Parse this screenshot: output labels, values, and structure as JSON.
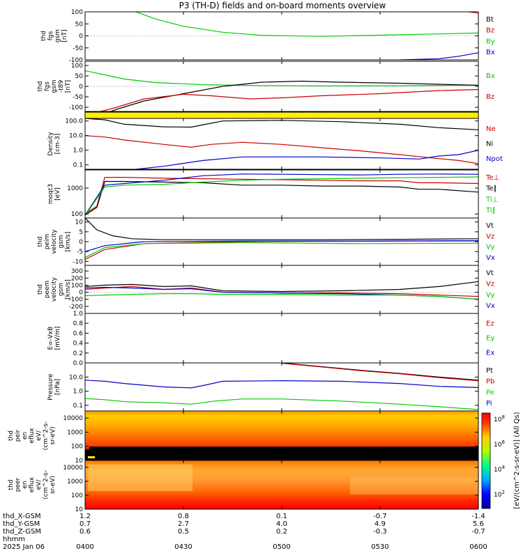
{
  "title": "P3 (TH-D) fields and on-board moments overview",
  "time_axis": {
    "tick_labels": [
      "0400",
      "0430",
      "0500",
      "0530",
      "0600"
    ],
    "ephemeris": [
      {
        "label": "thd_X-GSM",
        "values": [
          "1.2",
          "0.8",
          "0.1",
          "-0.7",
          "-1.4"
        ]
      },
      {
        "label": "thd_Y-GSM",
        "values": [
          "0.7",
          "2.7",
          "4.0",
          "4.9",
          "5.6"
        ]
      },
      {
        "label": "thd_Z-GSM",
        "values": [
          "0.6",
          "0.5",
          "0.2",
          "-0.3",
          "-0.7"
        ]
      }
    ],
    "footer_label": "hhmm",
    "date": "2025 Jan 06"
  },
  "colors": {
    "black": "#000000",
    "red": "#cc0000",
    "green": "#00cc00",
    "blue": "#0000cc",
    "yellow": "#ffee00"
  },
  "chart_data": [
    {
      "type": "line",
      "ylabel": [
        "thd",
        "fgs",
        "gsm",
        "[nT]"
      ],
      "ylim": [
        -100,
        100
      ],
      "yticks": [
        "100",
        "50",
        "0",
        "-50",
        "-100"
      ],
      "legend": [
        "Bt",
        "Bz",
        "By",
        "Bx"
      ],
      "legend_colors": [
        "#000000",
        "#cc0000",
        "#00cc00",
        "#0000cc"
      ],
      "series": [
        {
          "name": "By",
          "color": "#00cc00",
          "x": [
            0,
            0.13,
            0.18,
            0.25,
            0.35,
            0.45,
            0.6,
            0.75,
            0.9,
            1
          ],
          "y": [
            160,
            100,
            70,
            40,
            15,
            2,
            -2,
            3,
            8,
            12
          ]
        },
        {
          "name": "Bx",
          "color": "#0000cc",
          "x": [
            0.8,
            0.9,
            0.95,
            1
          ],
          "y": [
            -100,
            -95,
            -85,
            -70
          ]
        },
        {
          "name": "Bz",
          "color": "#cc0000",
          "x": [
            0.975,
            1
          ],
          "y": [
            100,
            95
          ]
        }
      ]
    },
    {
      "type": "line",
      "ylabel": [
        "thd",
        "fgs",
        "gsm",
        "-t89",
        "[nT]"
      ],
      "ylim": [
        -120,
        120
      ],
      "yticks": [
        "100",
        "50",
        "0",
        "-50",
        "-100"
      ],
      "legend": [
        "Bx",
        "Bz"
      ],
      "legend_colors": [
        "#00cc00",
        "#cc0000"
      ],
      "series": [
        {
          "name": "Bx",
          "color": "#00cc00",
          "x": [
            0,
            0.05,
            0.1,
            0.18,
            0.3,
            0.45,
            0.6,
            0.8,
            1
          ],
          "y": [
            75,
            55,
            35,
            18,
            8,
            4,
            2,
            3,
            6
          ]
        },
        {
          "name": "black",
          "color": "#000000",
          "x": [
            0.05,
            0.08,
            0.15,
            0.25,
            0.35,
            0.45,
            0.55,
            0.65,
            0.8,
            0.9,
            1
          ],
          "y": [
            -130,
            -110,
            -70,
            -35,
            0,
            20,
            25,
            20,
            15,
            10,
            5
          ]
        },
        {
          "name": "Bz",
          "color": "#cc0000",
          "x": [
            0.03,
            0.08,
            0.15,
            0.25,
            0.32,
            0.42,
            0.5,
            0.6,
            0.75,
            0.9,
            1
          ],
          "y": [
            -125,
            -100,
            -60,
            -38,
            -45,
            -60,
            -55,
            -45,
            -35,
            -20,
            -15
          ]
        }
      ]
    },
    {
      "type": "bar",
      "name": "flag",
      "color": "#ffee00"
    },
    {
      "type": "line",
      "log": true,
      "ylabel": [
        "Density",
        "[cm-3]"
      ],
      "ylim": [
        0.05,
        150
      ],
      "yticks": [
        "100.0",
        "10.0",
        "1.0",
        "0.1"
      ],
      "legend": [
        "Ne",
        "Ni",
        "Npot"
      ],
      "legend_colors": [
        "#cc0000",
        "#000000",
        "#0000cc"
      ],
      "series": [
        {
          "name": "Ni",
          "color": "#000000",
          "x": [
            0,
            0.05,
            0.1,
            0.2,
            0.27,
            0.3,
            0.35,
            0.5,
            0.65,
            0.8,
            0.9,
            1
          ],
          "y": [
            150,
            120,
            60,
            40,
            38,
            55,
            100,
            110,
            90,
            60,
            35,
            25
          ]
        },
        {
          "name": "Ne",
          "color": "#cc0000",
          "x": [
            0,
            0.05,
            0.1,
            0.2,
            0.27,
            0.32,
            0.4,
            0.5,
            0.6,
            0.7,
            0.8,
            0.88,
            0.95,
            1
          ],
          "y": [
            10,
            8,
            5,
            2.5,
            1.6,
            2.5,
            3.5,
            2.5,
            1.5,
            0.9,
            0.5,
            0.3,
            0.2,
            0.12
          ]
        },
        {
          "name": "Npot",
          "color": "#0000cc",
          "x": [
            0.13,
            0.2,
            0.3,
            0.4,
            0.6,
            0.75,
            0.85,
            0.9,
            0.95,
            1
          ],
          "y": [
            0.05,
            0.08,
            0.2,
            0.35,
            0.35,
            0.3,
            0.25,
            0.4,
            0.5,
            1.0
          ]
        }
      ]
    },
    {
      "type": "line",
      "log": true,
      "ylabel": [
        "moqt3",
        "[eV]"
      ],
      "ylim": [
        70,
        5000
      ],
      "yticks": [
        "1000",
        "100"
      ],
      "legend": [
        "Te⊥",
        "Te∥",
        "Ti⊥",
        "Ti∥"
      ],
      "legend_colors": [
        "#cc0000",
        "#000000",
        "#00cc00",
        "#00cc00"
      ],
      "series": [
        {
          "name": "Te⊥",
          "color": "#cc0000",
          "x": [
            0,
            0.03,
            0.05,
            0.1,
            0.2,
            0.3,
            0.4,
            0.5,
            0.6,
            0.7,
            0.8,
            0.85,
            0.9,
            1
          ],
          "y": [
            100,
            200,
            2600,
            2600,
            2400,
            2300,
            2200,
            2100,
            2000,
            1900,
            1900,
            1600,
            1600,
            1500
          ]
        },
        {
          "name": "Te∥",
          "color": "#000000",
          "x": [
            0,
            0.03,
            0.05,
            0.1,
            0.2,
            0.3,
            0.4,
            0.5,
            0.6,
            0.7,
            0.8,
            0.85,
            0.9,
            1
          ],
          "y": [
            90,
            180,
            1800,
            1800,
            1700,
            1600,
            1300,
            1300,
            1200,
            1200,
            1100,
            900,
            900,
            700
          ]
        },
        {
          "name": "Ti⊥",
          "color": "#0000cc",
          "x": [
            0,
            0.05,
            0.1,
            0.2,
            0.3,
            0.4,
            0.5,
            0.6,
            0.7,
            0.8,
            0.9,
            1
          ],
          "y": [
            90,
            1300,
            1500,
            2000,
            3000,
            3500,
            3400,
            3300,
            3200,
            3400,
            3500,
            3400
          ]
        },
        {
          "name": "Ti∥",
          "color": "#00cc00",
          "x": [
            0,
            0.05,
            0.1,
            0.2,
            0.3,
            0.4,
            0.5,
            0.6,
            0.7,
            0.8,
            0.9,
            1
          ],
          "y": [
            85,
            1100,
            1300,
            1400,
            1700,
            2000,
            2200,
            2300,
            2400,
            2500,
            2600,
            2700
          ]
        }
      ]
    },
    {
      "type": "line",
      "ylabel": [
        "thd",
        "peim",
        "velocity",
        "gsm",
        "[km/s]"
      ],
      "ylim": [
        -12,
        12
      ],
      "yticks": [
        "10",
        "5",
        "0",
        "-5",
        "-10"
      ],
      "legend": [
        "Vt",
        "Vz",
        "Vy",
        "Vx"
      ],
      "legend_colors": [
        "#000000",
        "#cc0000",
        "#00cc00",
        "#0000cc"
      ],
      "series": [
        {
          "name": "Vt",
          "color": "#000000",
          "x": [
            0,
            0.03,
            0.07,
            0.12,
            0.2,
            0.4,
            0.6,
            0.8,
            1
          ],
          "y": [
            12,
            6,
            3,
            1.5,
            1,
            1,
            1,
            1.2,
            1.5
          ]
        },
        {
          "name": "Vz",
          "color": "#cc0000",
          "x": [
            0,
            0.05,
            0.15,
            0.4,
            0.7,
            1
          ],
          "y": [
            -9,
            -4,
            -1,
            0,
            0.3,
            0.5
          ]
        },
        {
          "name": "Vy",
          "color": "#00cc00",
          "x": [
            0,
            0.05,
            0.15,
            0.4,
            0.7,
            1
          ],
          "y": [
            -8,
            -3,
            -1,
            -0.5,
            -1,
            -0.8
          ]
        },
        {
          "name": "Vx",
          "color": "#0000cc",
          "x": [
            0,
            0.05,
            0.15,
            0.4,
            0.7,
            1
          ],
          "y": [
            -5,
            -2,
            0,
            0.3,
            0.3,
            0.5
          ]
        }
      ]
    },
    {
      "type": "line",
      "ylabel": [
        "thd",
        "peem",
        "velocity",
        "gsm",
        "[km/s]"
      ],
      "ylim": [
        -300,
        380
      ],
      "yticks": [
        "300",
        "200",
        "100",
        "0",
        "-100",
        "-200"
      ],
      "legend": [
        "Vt",
        "Vz",
        "Vy",
        "Vx"
      ],
      "legend_colors": [
        "#000000",
        "#cc0000",
        "#00cc00",
        "#0000cc"
      ],
      "series": [
        {
          "name": "Vt",
          "color": "#000000",
          "x": [
            0,
            0.05,
            0.12,
            0.2,
            0.27,
            0.35,
            0.5,
            0.65,
            0.8,
            0.9,
            1
          ],
          "y": [
            80,
            100,
            110,
            80,
            90,
            20,
            10,
            20,
            40,
            80,
            150
          ]
        },
        {
          "name": "Vz",
          "color": "#cc0000",
          "x": [
            0,
            0.05,
            0.12,
            0.2,
            0.27,
            0.35,
            0.5,
            0.65,
            0.8,
            0.9,
            1
          ],
          "y": [
            40,
            60,
            80,
            40,
            60,
            0,
            -10,
            -10,
            -20,
            -40,
            -60
          ]
        },
        {
          "name": "Vx",
          "color": "#0000cc",
          "x": [
            0,
            0.05,
            0.12,
            0.2,
            0.27,
            0.35,
            0.5,
            0.65,
            0.8,
            0.9,
            1
          ],
          "y": [
            60,
            70,
            60,
            40,
            50,
            0,
            -10,
            -20,
            -40,
            -60,
            -100
          ]
        },
        {
          "name": "Vy",
          "color": "#00cc00",
          "x": [
            0,
            0.05,
            0.12,
            0.2,
            0.27,
            0.35,
            0.5,
            0.65,
            0.8,
            0.9,
            1
          ],
          "y": [
            -50,
            -40,
            -30,
            -20,
            -20,
            -30,
            -30,
            -40,
            -40,
            -60,
            -100
          ]
        }
      ]
    },
    {
      "type": "line",
      "ylabel": [
        "E=-VxB",
        "[mV/m]"
      ],
      "ylim": [
        0,
        1
      ],
      "yticks": [
        "1.0",
        "0.8",
        "0.6",
        "0.4",
        "0.2",
        "0.0"
      ],
      "legend": [
        "Ez",
        "Ey",
        "Ex"
      ],
      "legend_colors": [
        "#cc0000",
        "#00cc00",
        "#0000cc"
      ],
      "series": []
    },
    {
      "type": "line",
      "log": true,
      "ylabel": [
        "Pressure",
        "[nPa]"
      ],
      "ylim": [
        0.04,
        100
      ],
      "yticks": [
        "10.0",
        "1.0",
        "0.1"
      ],
      "legend": [
        "Pt",
        "Pb",
        "Pe",
        "Pi"
      ],
      "legend_colors": [
        "#000000",
        "#cc0000",
        "#00cc00",
        "#0000cc"
      ],
      "series": [
        {
          "name": "Pt",
          "color": "#000000",
          "x": [
            0.5,
            0.6,
            0.7,
            0.8,
            0.9,
            1
          ],
          "y": [
            100,
            55,
            30,
            18,
            10,
            6
          ]
        },
        {
          "name": "Pb",
          "color": "#cc0000",
          "x": [
            0.5,
            0.6,
            0.7,
            0.8,
            0.9,
            1
          ],
          "y": [
            95,
            52,
            28,
            17,
            9,
            5.5
          ]
        },
        {
          "name": "Pi",
          "color": "#0000cc",
          "x": [
            0,
            0.05,
            0.1,
            0.2,
            0.27,
            0.3,
            0.35,
            0.5,
            0.65,
            0.8,
            0.9,
            1
          ],
          "y": [
            6,
            5,
            3.5,
            2,
            1.7,
            2.5,
            5,
            5.5,
            5,
            3.5,
            2.2,
            1.8
          ]
        },
        {
          "name": "Pe",
          "color": "#00cc00",
          "x": [
            0,
            0.05,
            0.1,
            0.2,
            0.27,
            0.33,
            0.4,
            0.5,
            0.65,
            0.8,
            0.9,
            1
          ],
          "y": [
            0.3,
            0.25,
            0.18,
            0.15,
            0.12,
            0.2,
            0.28,
            0.28,
            0.2,
            0.12,
            0.08,
            0.05
          ]
        }
      ]
    },
    {
      "type": "heatmap",
      "ylabel": [
        "thd",
        "peir",
        "en",
        "eflux",
        "eV/",
        "(cm^2-s-",
        "sr-eV)"
      ],
      "yticks": [
        "10000",
        "1000",
        "100",
        "10"
      ],
      "colorbar_label": "[eV/(cm^2-s-sr-eV)] (All Qs)"
    },
    {
      "type": "heatmap",
      "ylabel": [
        "thd",
        "peer",
        "en",
        "eflux",
        "eV/",
        "(cm^2-s-",
        "sr-eV)"
      ],
      "yticks": [
        "10000",
        "1000",
        "100",
        "10"
      ],
      "colorbar_ticks": [
        "10^8",
        "10^6",
        "10^4",
        "10^2"
      ]
    }
  ]
}
